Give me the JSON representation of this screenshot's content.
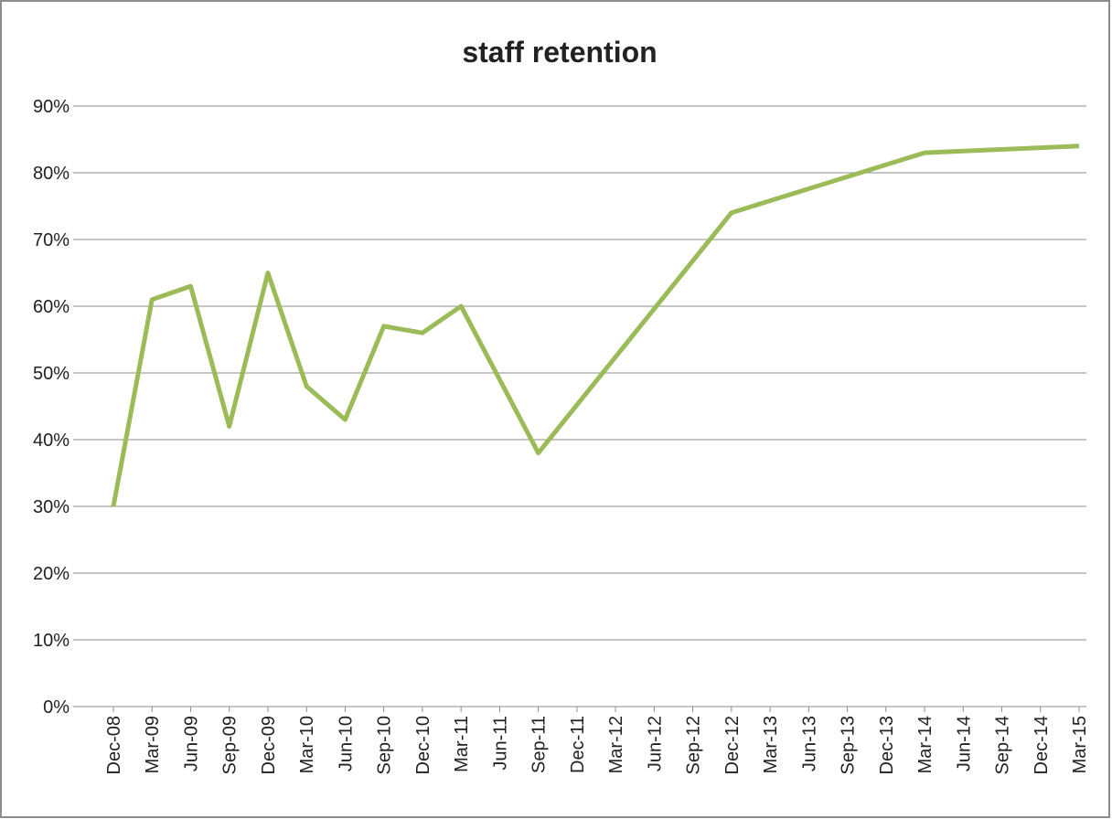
{
  "chart_data": {
    "type": "line",
    "title": "staff retention",
    "xticks": [
      "Dec-08",
      "Mar-09",
      "Jun-09",
      "Sep-09",
      "Dec-09",
      "Mar-10",
      "Jun-10",
      "Sep-10",
      "Dec-10",
      "Mar-11",
      "Jun-11",
      "Sep-11",
      "Dec-11",
      "Mar-12",
      "Jun-12",
      "Sep-12",
      "Dec-12",
      "Mar-13",
      "Jun-13",
      "Sep-13",
      "Dec-13",
      "Mar-14",
      "Jun-14",
      "Sep-14",
      "Dec-14",
      "Mar-15"
    ],
    "x": [
      "Dec-08",
      "Mar-09",
      "Jun-09",
      "Sep-09",
      "Dec-09",
      "Mar-10",
      "Jun-10",
      "Sep-10",
      "Dec-10",
      "Mar-11",
      "Sep-11",
      "Dec-12",
      "Mar-14",
      "Mar-15"
    ],
    "series": [
      {
        "name": "staff retention",
        "color": "#9bbb59",
        "values": [
          30,
          61,
          63,
          42,
          65,
          48,
          43,
          57,
          56,
          60,
          38,
          74,
          83,
          84
        ]
      }
    ],
    "ylim": [
      0,
      90
    ],
    "yticks": [
      {
        "value": 0,
        "label": "0%"
      },
      {
        "value": 10,
        "label": "10%"
      },
      {
        "value": 20,
        "label": "20%"
      },
      {
        "value": 30,
        "label": "30%"
      },
      {
        "value": 40,
        "label": "40%"
      },
      {
        "value": 50,
        "label": "50%"
      },
      {
        "value": 60,
        "label": "60%"
      },
      {
        "value": 70,
        "label": "70%"
      },
      {
        "value": 80,
        "label": "80%"
      },
      {
        "value": 90,
        "label": "90%"
      }
    ],
    "grid": true
  }
}
